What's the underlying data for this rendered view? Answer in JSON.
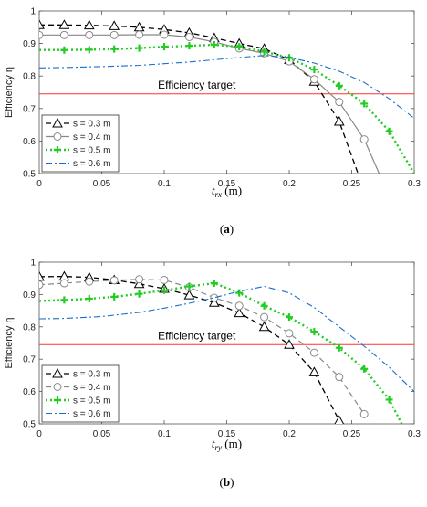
{
  "chart_data": [
    {
      "type": "line",
      "panel_label": "(a)",
      "xlabel_main": "t",
      "xlabel_sub": "rx",
      "xlabel_unit": " (m)",
      "ylabel": "Efficiency η",
      "xlim": [
        0,
        0.3
      ],
      "ylim": [
        0.5,
        1
      ],
      "xticks": [
        "0",
        "0.05",
        "0.1",
        "0.15",
        "0.2",
        "0.25",
        "0.3"
      ],
      "yticks": [
        "0.5",
        "0.6",
        "0.7",
        "0.8",
        "0.9",
        "1"
      ],
      "grid": false,
      "legend_position": "bottom-left",
      "target": {
        "label": "Efficiency target",
        "value": 0.745,
        "color": "#ff3333"
      },
      "series": [
        {
          "name": "s = 0.3 m",
          "color": "#000000",
          "dash": "6,4",
          "marker": "triangle",
          "width": 1.3,
          "x": [
            0,
            0.02,
            0.04,
            0.06,
            0.08,
            0.1,
            0.12,
            0.14,
            0.16,
            0.18,
            0.2,
            0.22,
            0.24,
            0.255
          ],
          "y": [
            0.957,
            0.957,
            0.956,
            0.954,
            0.95,
            0.943,
            0.933,
            0.917,
            0.9,
            0.884,
            0.85,
            0.783,
            0.66,
            0.5
          ],
          "markers_x": [
            0,
            0.02,
            0.04,
            0.06,
            0.08,
            0.1,
            0.12,
            0.14,
            0.16,
            0.18,
            0.2,
            0.22,
            0.24
          ],
          "markers_y": [
            0.957,
            0.957,
            0.956,
            0.954,
            0.95,
            0.943,
            0.933,
            0.917,
            0.9,
            0.884,
            0.85,
            0.783,
            0.66
          ]
        },
        {
          "name": "s = 0.4 m",
          "color": "#888888",
          "dash": "",
          "marker": "circle",
          "width": 1.2,
          "x": [
            0,
            0.02,
            0.04,
            0.06,
            0.08,
            0.1,
            0.12,
            0.14,
            0.16,
            0.18,
            0.2,
            0.22,
            0.24,
            0.26,
            0.272
          ],
          "y": [
            0.926,
            0.926,
            0.926,
            0.926,
            0.927,
            0.927,
            0.92,
            0.905,
            0.885,
            0.87,
            0.845,
            0.79,
            0.72,
            0.605,
            0.5
          ],
          "markers_x": [
            0,
            0.02,
            0.04,
            0.06,
            0.08,
            0.1,
            0.12,
            0.14,
            0.16,
            0.18,
            0.2,
            0.22,
            0.24,
            0.26
          ],
          "markers_y": [
            0.926,
            0.926,
            0.926,
            0.926,
            0.927,
            0.927,
            0.92,
            0.905,
            0.885,
            0.87,
            0.845,
            0.79,
            0.72,
            0.605
          ]
        },
        {
          "name": "s = 0.5 m",
          "color": "#22cc22",
          "dash": "2,3",
          "marker": "plus",
          "width": 2.4,
          "x": [
            0,
            0.02,
            0.04,
            0.06,
            0.08,
            0.1,
            0.12,
            0.14,
            0.16,
            0.18,
            0.2,
            0.22,
            0.24,
            0.26,
            0.28,
            0.3
          ],
          "y": [
            0.88,
            0.88,
            0.881,
            0.883,
            0.886,
            0.89,
            0.893,
            0.896,
            0.89,
            0.875,
            0.856,
            0.82,
            0.77,
            0.715,
            0.63,
            0.5
          ],
          "markers_x": [
            0.02,
            0.04,
            0.06,
            0.08,
            0.1,
            0.12,
            0.14,
            0.16,
            0.18,
            0.2,
            0.22,
            0.24,
            0.26,
            0.28
          ],
          "markers_y": [
            0.88,
            0.881,
            0.883,
            0.886,
            0.89,
            0.893,
            0.896,
            0.89,
            0.875,
            0.856,
            0.82,
            0.77,
            0.715,
            0.63
          ]
        },
        {
          "name": "s = 0.6 m",
          "color": "#1a6fcc",
          "dash": "7,3,2,3",
          "marker": "none",
          "width": 1.1,
          "x": [
            0,
            0.02,
            0.05,
            0.08,
            0.1,
            0.12,
            0.14,
            0.16,
            0.18,
            0.2,
            0.22,
            0.24,
            0.26,
            0.28,
            0.3
          ],
          "y": [
            0.825,
            0.826,
            0.829,
            0.833,
            0.838,
            0.843,
            0.85,
            0.857,
            0.863,
            0.857,
            0.84,
            0.815,
            0.78,
            0.73,
            0.67
          ]
        }
      ]
    },
    {
      "type": "line",
      "panel_label": "(b)",
      "xlabel_main": "t",
      "xlabel_sub": "ry",
      "xlabel_unit": " (m)",
      "ylabel": "Efficiency η",
      "xlim": [
        0,
        0.3
      ],
      "ylim": [
        0.5,
        1
      ],
      "xticks": [
        "0",
        "0.05",
        "0.1",
        "0.15",
        "0.2",
        "0.25",
        "0.3"
      ],
      "yticks": [
        "0.5",
        "0.6",
        "0.7",
        "0.8",
        "0.9",
        "1"
      ],
      "grid": false,
      "legend_position": "bottom-left",
      "target": {
        "label": "Efficiency target",
        "value": 0.745,
        "color": "#ff3333"
      },
      "series": [
        {
          "name": "s = 0.3 m",
          "color": "#000000",
          "dash": "6,4",
          "marker": "triangle",
          "width": 1.3,
          "x": [
            0,
            0.02,
            0.04,
            0.06,
            0.08,
            0.1,
            0.12,
            0.14,
            0.16,
            0.18,
            0.2,
            0.22,
            0.24
          ],
          "y": [
            0.955,
            0.956,
            0.953,
            0.945,
            0.933,
            0.918,
            0.898,
            0.875,
            0.843,
            0.8,
            0.745,
            0.66,
            0.51
          ],
          "markers_x": [
            0,
            0.02,
            0.04,
            0.06,
            0.08,
            0.1,
            0.12,
            0.14,
            0.16,
            0.18,
            0.2,
            0.22,
            0.24
          ],
          "markers_y": [
            0.955,
            0.956,
            0.953,
            0.945,
            0.933,
            0.918,
            0.898,
            0.875,
            0.843,
            0.8,
            0.745,
            0.66,
            0.51
          ]
        },
        {
          "name": "s = 0.4 m",
          "color": "#888888",
          "dash": "6,4",
          "marker": "circle",
          "width": 1.2,
          "x": [
            0,
            0.02,
            0.04,
            0.06,
            0.08,
            0.1,
            0.12,
            0.14,
            0.16,
            0.18,
            0.2,
            0.22,
            0.24,
            0.26
          ],
          "y": [
            0.93,
            0.935,
            0.94,
            0.944,
            0.947,
            0.945,
            0.922,
            0.89,
            0.865,
            0.83,
            0.78,
            0.72,
            0.645,
            0.53
          ],
          "markers_x": [
            0,
            0.02,
            0.04,
            0.06,
            0.08,
            0.1,
            0.12,
            0.14,
            0.16,
            0.18,
            0.2,
            0.22,
            0.24,
            0.26
          ],
          "markers_y": [
            0.93,
            0.935,
            0.94,
            0.944,
            0.947,
            0.945,
            0.922,
            0.89,
            0.865,
            0.83,
            0.78,
            0.72,
            0.645,
            0.53
          ]
        },
        {
          "name": "s = 0.5 m",
          "color": "#22cc22",
          "dash": "2,3",
          "marker": "plus",
          "width": 2.4,
          "x": [
            0,
            0.02,
            0.04,
            0.06,
            0.08,
            0.1,
            0.12,
            0.14,
            0.16,
            0.18,
            0.2,
            0.22,
            0.24,
            0.26,
            0.28,
            0.29
          ],
          "y": [
            0.88,
            0.883,
            0.887,
            0.893,
            0.902,
            0.913,
            0.925,
            0.935,
            0.905,
            0.865,
            0.83,
            0.785,
            0.735,
            0.67,
            0.575,
            0.5
          ],
          "markers_x": [
            0.02,
            0.04,
            0.06,
            0.08,
            0.1,
            0.12,
            0.14,
            0.16,
            0.18,
            0.2,
            0.22,
            0.24,
            0.26,
            0.28
          ],
          "markers_y": [
            0.883,
            0.887,
            0.893,
            0.902,
            0.913,
            0.925,
            0.935,
            0.905,
            0.865,
            0.83,
            0.785,
            0.735,
            0.67,
            0.575
          ]
        },
        {
          "name": "s = 0.6 m",
          "color": "#1a6fcc",
          "dash": "7,3,2,3",
          "marker": "none",
          "width": 1.1,
          "x": [
            0,
            0.02,
            0.05,
            0.08,
            0.1,
            0.12,
            0.14,
            0.16,
            0.18,
            0.2,
            0.22,
            0.24,
            0.26,
            0.28,
            0.3
          ],
          "y": [
            0.825,
            0.826,
            0.832,
            0.845,
            0.858,
            0.873,
            0.89,
            0.91,
            0.925,
            0.905,
            0.86,
            0.8,
            0.74,
            0.675,
            0.6
          ]
        }
      ]
    }
  ]
}
